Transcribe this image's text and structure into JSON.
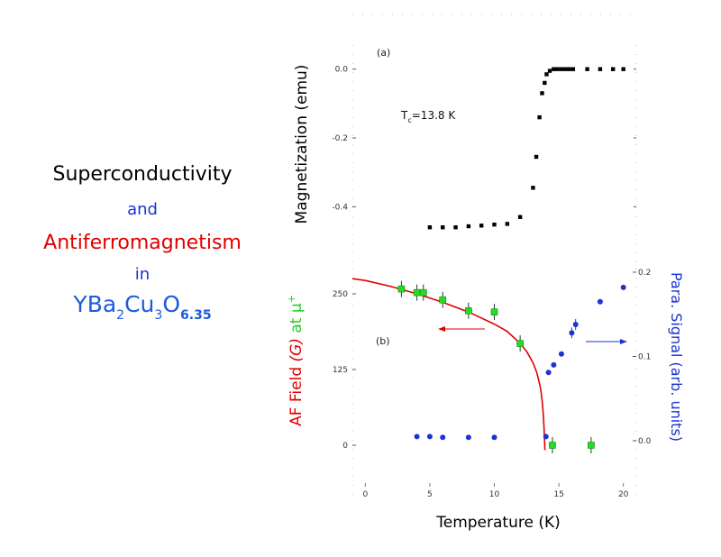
{
  "left_text": {
    "line1": "Superconductivity",
    "line2": "and",
    "line3": "Antiferromagnetism",
    "line4": "in",
    "formula": {
      "yba": "YBa",
      "sub2": "2",
      "cu": "Cu",
      "sub3": "3",
      "o": "O",
      "sub_o": "6.35"
    }
  },
  "colors": {
    "black": "#000000",
    "red": "#e00000",
    "blue": "#1a33d6",
    "green": "#22dd22",
    "formula_blue": "#1a5be0"
  },
  "chart_data": [
    {
      "type": "scatter",
      "panel_label": "(a)",
      "ylabel": "Magnetization (emu)",
      "annotation": {
        "T": "T",
        "sub": "c",
        "value": "=13.8 K"
      },
      "xlim": [
        -1,
        21
      ],
      "ylim": [
        -0.58,
        0.07
      ],
      "yticks": [
        0.0,
        -0.2,
        -0.4
      ],
      "ytick_labels": [
        "0.0",
        "-0.2",
        "-0.4"
      ],
      "series": [
        {
          "marker": "square",
          "color": "#000000",
          "x": [
            5.0,
            6.0,
            7.0,
            8.0,
            9.0,
            10.0,
            11.0,
            12.0,
            13.0,
            13.25,
            13.5,
            13.7,
            13.9,
            14.05,
            14.3,
            14.6,
            14.9,
            15.2,
            15.5,
            15.8,
            16.1,
            17.2,
            18.2,
            19.2,
            20.0
          ],
          "y": [
            -0.46,
            -0.46,
            -0.46,
            -0.457,
            -0.455,
            -0.452,
            -0.45,
            -0.43,
            -0.345,
            -0.255,
            -0.14,
            -0.07,
            -0.04,
            -0.015,
            -0.005,
            0.0,
            0.0,
            0.0,
            0.0,
            0.0,
            0.0,
            0.0,
            0.0,
            0.0,
            0.0
          ]
        }
      ]
    },
    {
      "type": "scatter",
      "panel_label": "(b)",
      "xlabel": "Temperature (K)",
      "xlim": [
        -1,
        21
      ],
      "xticks": [
        0,
        5,
        10,
        15,
        20
      ],
      "xtick_labels": [
        "0",
        "5",
        "10",
        "15",
        "20"
      ],
      "ylabel_parts": [
        "AF Field ",
        "(G)",
        " at ",
        "μ",
        "+"
      ],
      "ylim": [
        -15,
        280
      ],
      "yticks": [
        0,
        125,
        250
      ],
      "ytick_labels": [
        "0",
        "125",
        "250"
      ],
      "y2label": "Para. Signal (arb. units)",
      "y2lim": [
        -0.013,
        0.2
      ],
      "y2ticks": [
        0.0,
        0.1,
        0.2
      ],
      "y2tick_labels": [
        "0.0",
        "0.1",
        "0.2"
      ],
      "series": [
        {
          "name_hidden": true,
          "marker": "square",
          "color": "#22dd22",
          "axis": "left",
          "x": [
            2.8,
            4.0,
            4.5,
            6.0,
            8.0,
            10.0,
            12.0,
            14.5,
            17.5
          ],
          "y": [
            258,
            252,
            252,
            240,
            222,
            220,
            168,
            0,
            0
          ]
        },
        {
          "marker": "circle",
          "color": "#1a33d6",
          "axis": "right",
          "x": [
            4.0,
            5.0,
            6.0,
            8.0,
            10.0,
            14.0,
            14.2,
            14.6,
            15.2,
            16.0,
            16.3,
            18.2,
            20.0
          ],
          "y": [
            0.005,
            0.005,
            0.004,
            0.004,
            0.004,
            0.005,
            0.081,
            0.09,
            0.103,
            0.128,
            0.138,
            0.165,
            0.182
          ]
        },
        {
          "type": "line",
          "color": "#e00000",
          "axis": "left",
          "x": [
            -1.0,
            0.0,
            2.0,
            4.0,
            6.0,
            8.0,
            10.0,
            11.0,
            12.0,
            12.5,
            13.0,
            13.3,
            13.5,
            13.6,
            13.7,
            13.8,
            13.85
          ],
          "y": [
            275,
            272,
            262,
            250,
            236,
            220,
            200,
            188,
            168,
            155,
            136,
            119,
            102,
            92,
            74,
            50,
            30
          ]
        }
      ]
    }
  ]
}
